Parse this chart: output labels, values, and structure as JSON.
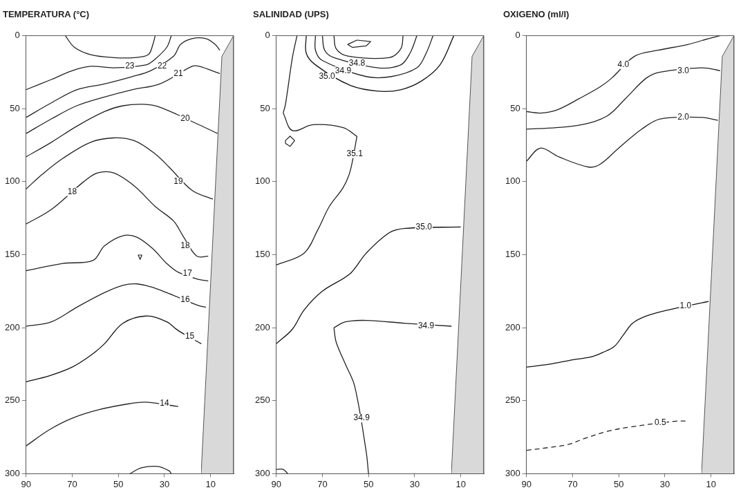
{
  "chart_data": [
    {
      "type": "line",
      "title": "TEMPERATURA (°C)",
      "xlim": [
        90,
        0
      ],
      "xticks": [
        90,
        70,
        50,
        30,
        10
      ],
      "ylim": [
        300,
        0
      ],
      "yticks": [
        0,
        50,
        100,
        150,
        200,
        250,
        300
      ],
      "marker": "none",
      "series": [
        {
          "color": "#222222",
          "x": [
            73,
            69,
            62,
            52,
            43,
            37,
            35,
            34
          ],
          "values": [
            0,
            8,
            13,
            15,
            15,
            13,
            6,
            0
          ]
        },
        {
          "color": "#222222",
          "x": [
            90,
            79,
            70,
            62,
            52,
            38,
            34,
            29,
            27
          ],
          "values": [
            37,
            30,
            24,
            21,
            22,
            20,
            16,
            8,
            0
          ]
        },
        {
          "color": "#222222",
          "x": [
            90,
            79,
            68,
            56,
            44,
            36,
            26,
            23,
            18,
            12,
            8,
            6
          ],
          "values": [
            56,
            46,
            37,
            33,
            28,
            24,
            14,
            6,
            2,
            2,
            6,
            10
          ]
        },
        {
          "color": "#222222",
          "x": [
            90,
            79,
            68,
            56,
            44,
            32,
            18,
            15,
            6
          ],
          "values": [
            67,
            57,
            48,
            42,
            37,
            33,
            21,
            21,
            26
          ]
        },
        {
          "color": "#222222",
          "x": [
            90,
            79,
            68,
            56,
            48,
            39,
            32,
            15,
            7
          ],
          "values": [
            83,
            73,
            62,
            52,
            48,
            47,
            49,
            61,
            67
          ]
        },
        {
          "color": "#222222",
          "x": [
            90,
            83,
            74,
            62,
            52,
            43,
            34,
            28,
            18,
            9
          ],
          "values": [
            105,
            95,
            84,
            73,
            70,
            72,
            81,
            90,
            106,
            112
          ]
        },
        {
          "color": "#222222",
          "x": [
            90,
            79,
            65,
            59,
            52,
            43,
            34,
            26,
            22,
            16,
            11
          ],
          "values": [
            129,
            119,
            100,
            94,
            94,
            103,
            117,
            127,
            137,
            151,
            151
          ]
        },
        {
          "color": "#222222",
          "x": [
            90,
            74,
            61,
            56,
            48,
            42,
            35,
            29,
            24,
            15,
            11
          ],
          "values": [
            161,
            156,
            154,
            144,
            137,
            138,
            146,
            156,
            162,
            167,
            168
          ]
        },
        {
          "color": "#222222",
          "x": [
            90,
            79,
            68,
            56,
            48,
            42,
            36,
            29,
            15,
            12
          ],
          "values": [
            199,
            196,
            186,
            176,
            171,
            170,
            172,
            176,
            185,
            186
          ]
        },
        {
          "color": "#111111",
          "x": [
            90,
            80,
            70,
            62,
            56,
            48,
            38,
            29,
            24,
            14
          ],
          "values": [
            237,
            233,
            227,
            219,
            211,
            197,
            192,
            196,
            202,
            211
          ]
        },
        {
          "color": "#222222",
          "x": [
            90,
            80,
            70,
            58,
            45,
            38,
            24
          ],
          "values": [
            281,
            270,
            262,
            256,
            252,
            251,
            254
          ]
        },
        {
          "color": "#222222",
          "x": [
            45,
            40,
            33,
            28,
            27
          ],
          "values": [
            300,
            296,
            295,
            298,
            300
          ]
        }
      ],
      "annotations": [
        {
          "text": "23",
          "x": 45,
          "y": 21
        },
        {
          "text": "22",
          "x": 31,
          "y": 21
        },
        {
          "text": "21",
          "x": 24,
          "y": 26
        },
        {
          "text": "20",
          "x": 21,
          "y": 57
        },
        {
          "text": "19",
          "x": 24,
          "y": 100
        },
        {
          "text": "18",
          "x": 70,
          "y": 107
        },
        {
          "text": "18",
          "x": 21,
          "y": 144
        },
        {
          "text": "17",
          "x": 20,
          "y": 163
        },
        {
          "text": "16",
          "x": 21,
          "y": 181
        },
        {
          "text": "15",
          "x": 19,
          "y": 206
        },
        {
          "text": "14",
          "x": 30,
          "y": 252
        }
      ]
    },
    {
      "type": "line",
      "title": "SALINIDAD (UPS)",
      "xlim": [
        90,
        0
      ],
      "xticks": [
        90,
        70,
        50,
        30,
        10
      ],
      "ylim": [
        300,
        0
      ],
      "yticks": [
        0,
        50,
        100,
        150,
        200,
        250,
        300
      ],
      "marker": "none",
      "series": [
        {
          "color": "#222222",
          "x": [
            65,
            64,
            59,
            41,
            36,
            35
          ],
          "values": [
            0,
            9,
            14,
            15,
            9,
            0
          ]
        },
        {
          "color": "#222222",
          "x": [
            70,
            69,
            65,
            46,
            36,
            32,
            29
          ],
          "values": [
            0,
            10,
            15,
            22,
            20,
            12,
            0
          ]
        },
        {
          "color": "#222222",
          "x": [
            73,
            73,
            70,
            51,
            40,
            29,
            25,
            22
          ],
          "values": [
            0,
            10,
            17,
            28,
            28,
            22,
            12,
            0
          ]
        },
        {
          "color": "#111111",
          "x": [
            77,
            77,
            73,
            58,
            46,
            36,
            27,
            19,
            13
          ],
          "values": [
            0,
            12,
            20,
            34,
            38,
            37,
            31,
            20,
            0
          ]
        },
        {
          "color": "#222222",
          "x": [
            81,
            83,
            86,
            87
          ],
          "values": [
            0,
            15,
            47,
            53
          ]
        },
        {
          "color": "#222222",
          "x": [
            87,
            83,
            74,
            61,
            55
          ],
          "values": [
            53,
            65,
            61,
            63,
            69
          ]
        },
        {
          "color": "#222222",
          "x": [
            55,
            58,
            61,
            67,
            72,
            78,
            90
          ],
          "values": [
            69,
            93,
            104,
            117,
            133,
            149,
            157
          ]
        },
        {
          "color": "#111111",
          "x": [
            90,
            83,
            78,
            70,
            58,
            51,
            41,
            34,
            10
          ],
          "values": [
            211,
            201,
            188,
            175,
            163,
            149,
            135,
            132,
            131
          ]
        },
        {
          "color": "#222222",
          "x": [
            50,
            51,
            56,
            60,
            64,
            65
          ],
          "values": [
            300,
            285,
            240,
            225,
            210,
            200
          ]
        },
        {
          "color": "#222222",
          "x": [
            65,
            60,
            51,
            34,
            14
          ],
          "values": [
            200,
            196,
            195,
            197,
            199
          ]
        },
        {
          "color": "#222222",
          "x": [
            90,
            87,
            85
          ],
          "values": [
            297,
            297,
            300
          ]
        }
      ],
      "annotations": [
        {
          "text": "34.8",
          "x": 55,
          "y": 19
        },
        {
          "text": "34.9",
          "x": 61,
          "y": 24
        },
        {
          "text": "35.0",
          "x": 68,
          "y": 28
        },
        {
          "text": "35.1",
          "x": 56,
          "y": 81
        },
        {
          "text": "35.0",
          "x": 26,
          "y": 131
        },
        {
          "text": "34.9",
          "x": 25,
          "y": 199
        },
        {
          "text": "34.9",
          "x": 53,
          "y": 262
        }
      ]
    },
    {
      "type": "line",
      "title": "OXIGENO (ml/l)",
      "xlim": [
        90,
        0
      ],
      "xticks": [
        90,
        70,
        50,
        30,
        10
      ],
      "ylim": [
        300,
        0
      ],
      "yticks": [
        0,
        50,
        100,
        150,
        200,
        250,
        300
      ],
      "marker": "none",
      "series": [
        {
          "color": "#222222",
          "x": [
            90,
            84,
            77,
            67,
            58,
            53,
            43,
            33,
            20,
            11,
            6
          ],
          "values": [
            52,
            53,
            51,
            43,
            35,
            29,
            14,
            10,
            6,
            2,
            0
          ]
        },
        {
          "color": "#222222",
          "x": [
            90,
            77,
            66,
            55,
            47,
            38,
            32,
            14,
            6
          ],
          "values": [
            64,
            63,
            61,
            55,
            43,
            29,
            25,
            22,
            24
          ]
        },
        {
          "color": "#222222",
          "x": [
            90,
            84,
            76,
            63,
            58,
            50,
            40,
            32,
            14,
            7
          ],
          "values": [
            86,
            77,
            83,
            90,
            88,
            77,
            64,
            57,
            56,
            58
          ]
        },
        {
          "color": "#111111",
          "x": [
            90,
            80,
            70,
            62,
            57,
            52,
            48,
            44,
            38,
            29,
            11
          ],
          "values": [
            227,
            225,
            222,
            220,
            217,
            213,
            205,
            197,
            192,
            188,
            182
          ]
        },
        {
          "color": "#222222",
          "line_style": "dashed",
          "x": [
            90,
            80,
            72,
            65,
            55,
            45,
            25,
            20
          ],
          "values": [
            284,
            282,
            280,
            276,
            271,
            268,
            264,
            264
          ]
        }
      ],
      "annotations": [
        {
          "text": "4.0",
          "x": 48,
          "y": 20
        },
        {
          "text": "3.0",
          "x": 22,
          "y": 24
        },
        {
          "text": "2.0",
          "x": 22,
          "y": 56
        },
        {
          "text": "1.0",
          "x": 21,
          "y": 185
        },
        {
          "text": "0.5",
          "x": 32,
          "y": 265
        }
      ]
    }
  ]
}
